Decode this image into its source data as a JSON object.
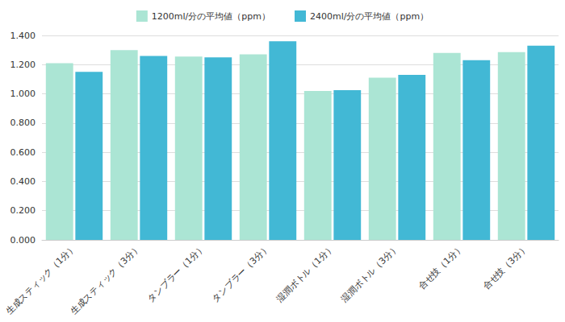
{
  "chart_data": {
    "type": "bar",
    "categories": [
      "生成スティック（1分）",
      "生成スティック（3分）",
      "タンブラー（1分）",
      "タンブラー（3分）",
      "湿潤ボトル（1分）",
      "湿潤ボトル（3分）",
      "合せ技（1分）",
      "合せ技（3分）"
    ],
    "series": [
      {
        "name": "1200ml/分の平均値（ppm）",
        "color": "#abe5d4",
        "values": [
          1.21,
          1.3,
          1.255,
          1.27,
          1.02,
          1.11,
          1.28,
          1.285
        ]
      },
      {
        "name": "2400ml/分の平均値（ppm）",
        "color": "#42b8d5",
        "values": [
          1.15,
          1.26,
          1.25,
          1.36,
          1.025,
          1.13,
          1.23,
          1.33
        ]
      }
    ],
    "ylim": [
      0,
      1.4
    ],
    "yticks": [
      {
        "value": 0,
        "label": "0.000"
      },
      {
        "value": 0.2,
        "label": "0.200"
      },
      {
        "value": 0.4,
        "label": "0.400"
      },
      {
        "value": 0.6,
        "label": "0.600"
      },
      {
        "value": 0.8,
        "label": "0.800"
      },
      {
        "value": 1.0,
        "label": "1.000"
      },
      {
        "value": 1.2,
        "label": "1.200"
      },
      {
        "value": 1.4,
        "label": "1.400"
      }
    ],
    "grid": true,
    "legend": "top"
  }
}
